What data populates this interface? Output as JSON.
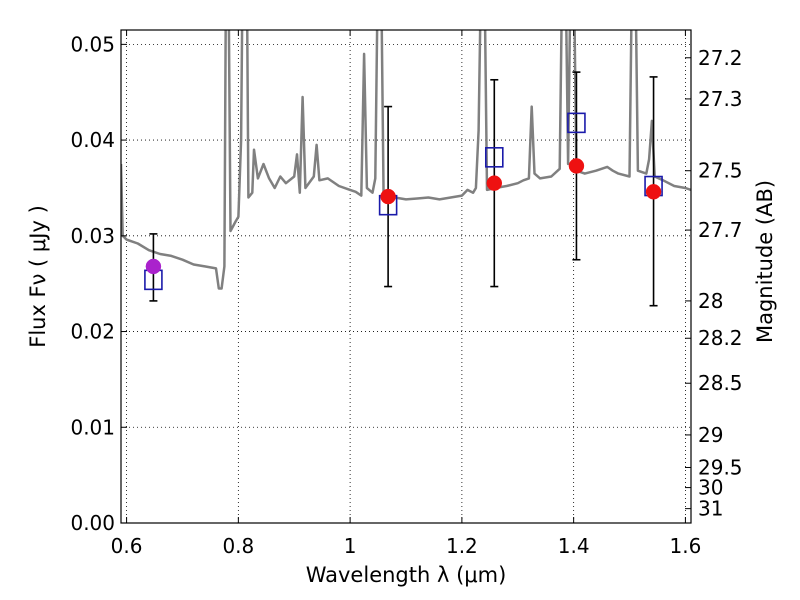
{
  "chart_data": {
    "type": "scatter",
    "xlabel": "Wavelength  λ (μm)",
    "ylabel": "Flux  Fν  ( μJy )",
    "y2label": "Magnitude (AB)",
    "xlim": [
      0.59,
      1.61
    ],
    "ylim": [
      0.0,
      0.0515
    ],
    "x_ticks": [
      0.6,
      0.8,
      1.0,
      1.2,
      1.4,
      1.6
    ],
    "x_tick_labels": [
      "0.6",
      "0.8",
      "1",
      "1.2",
      "1.4",
      "1.6"
    ],
    "y_ticks": [
      0.0,
      0.01,
      0.02,
      0.03,
      0.04,
      0.05
    ],
    "y_tick_labels": [
      "0.00",
      "0.01",
      "0.02",
      "0.03",
      "0.04",
      "0.05"
    ],
    "y2_ticks": [
      {
        "label": "27.2",
        "flux": 0.0486
      },
      {
        "label": "27.3",
        "flux": 0.0443
      },
      {
        "label": "27.5",
        "flux": 0.0368
      },
      {
        "label": "27.7",
        "flux": 0.0306
      },
      {
        "label": "28",
        "flux": 0.0232
      },
      {
        "label": "28.2",
        "flux": 0.0193
      },
      {
        "label": "28.5",
        "flux": 0.0146
      },
      {
        "label": "29",
        "flux": 0.0092
      },
      {
        "label": "29.5",
        "flux": 0.0058
      },
      {
        "label": "30",
        "flux": 0.0037
      },
      {
        "label": "31",
        "flux": 0.0015
      }
    ],
    "grid": true,
    "colors": {
      "model": "#808080",
      "observed": "#ee1111",
      "observed_first": "#aa22cc",
      "model_box": "#1a1aaa",
      "errorbar": "#000000"
    },
    "series": [
      {
        "type": "line",
        "points": [
          [
            0.59,
            0.0375
          ],
          [
            0.593,
            0.03
          ],
          [
            0.6,
            0.0296
          ],
          [
            0.62,
            0.0292
          ],
          [
            0.64,
            0.0285
          ],
          [
            0.66,
            0.0281
          ],
          [
            0.68,
            0.0279
          ],
          [
            0.7,
            0.0275
          ],
          [
            0.72,
            0.027
          ],
          [
            0.74,
            0.0268
          ],
          [
            0.76,
            0.0266
          ],
          [
            0.765,
            0.0245
          ],
          [
            0.77,
            0.0245
          ],
          [
            0.775,
            0.0268
          ],
          [
            0.778,
            0.06
          ],
          [
            0.782,
            0.06
          ],
          [
            0.786,
            0.0305
          ],
          [
            0.795,
            0.0315
          ],
          [
            0.8,
            0.032
          ],
          [
            0.805,
            0.04
          ],
          [
            0.808,
            0.06
          ],
          [
            0.815,
            0.06
          ],
          [
            0.818,
            0.034
          ],
          [
            0.825,
            0.0345
          ],
          [
            0.828,
            0.039
          ],
          [
            0.835,
            0.036
          ],
          [
            0.845,
            0.0375
          ],
          [
            0.855,
            0.036
          ],
          [
            0.865,
            0.035
          ],
          [
            0.875,
            0.0362
          ],
          [
            0.885,
            0.0355
          ],
          [
            0.9,
            0.0362
          ],
          [
            0.905,
            0.0385
          ],
          [
            0.91,
            0.0345
          ],
          [
            0.915,
            0.0445
          ],
          [
            0.92,
            0.035
          ],
          [
            0.935,
            0.0362
          ],
          [
            0.94,
            0.0395
          ],
          [
            0.945,
            0.0358
          ],
          [
            0.96,
            0.036
          ],
          [
            0.98,
            0.0352
          ],
          [
            1.0,
            0.0348
          ],
          [
            1.01,
            0.0346
          ],
          [
            1.02,
            0.0342
          ],
          [
            1.025,
            0.049
          ],
          [
            1.03,
            0.035
          ],
          [
            1.04,
            0.0345
          ],
          [
            1.045,
            0.036
          ],
          [
            1.05,
            0.06
          ],
          [
            1.055,
            0.06
          ],
          [
            1.06,
            0.034
          ],
          [
            1.08,
            0.034
          ],
          [
            1.1,
            0.0338
          ],
          [
            1.12,
            0.0339
          ],
          [
            1.14,
            0.034
          ],
          [
            1.16,
            0.0338
          ],
          [
            1.18,
            0.034
          ],
          [
            1.2,
            0.0342
          ],
          [
            1.21,
            0.0348
          ],
          [
            1.22,
            0.0345
          ],
          [
            1.225,
            0.035
          ],
          [
            1.23,
            0.041
          ],
          [
            1.235,
            0.06
          ],
          [
            1.24,
            0.06
          ],
          [
            1.245,
            0.0348
          ],
          [
            1.26,
            0.035
          ],
          [
            1.28,
            0.0352
          ],
          [
            1.3,
            0.0355
          ],
          [
            1.31,
            0.0358
          ],
          [
            1.32,
            0.036
          ],
          [
            1.325,
            0.0435
          ],
          [
            1.33,
            0.0365
          ],
          [
            1.34,
            0.036
          ],
          [
            1.36,
            0.0362
          ],
          [
            1.375,
            0.037
          ],
          [
            1.38,
            0.06
          ],
          [
            1.385,
            0.06
          ],
          [
            1.39,
            0.0375
          ],
          [
            1.395,
            0.06
          ],
          [
            1.4,
            0.06
          ],
          [
            1.405,
            0.0368
          ],
          [
            1.42,
            0.0365
          ],
          [
            1.44,
            0.0368
          ],
          [
            1.46,
            0.0372
          ],
          [
            1.47,
            0.0368
          ],
          [
            1.48,
            0.0365
          ],
          [
            1.5,
            0.0362
          ],
          [
            1.505,
            0.06
          ],
          [
            1.51,
            0.06
          ],
          [
            1.515,
            0.0368
          ],
          [
            1.53,
            0.0365
          ],
          [
            1.535,
            0.038
          ],
          [
            1.54,
            0.042
          ],
          [
            1.545,
            0.0362
          ],
          [
            1.56,
            0.0358
          ],
          [
            1.58,
            0.0352
          ],
          [
            1.6,
            0.035
          ],
          [
            1.61,
            0.0348
          ]
        ]
      },
      {
        "type": "scatter",
        "points": [
          {
            "x": 0.648,
            "y": 0.0268,
            "yerr_low": 0.0232,
            "yerr_high": 0.0302
          },
          {
            "x": 1.068,
            "y": 0.0341,
            "yerr_low": 0.0247,
            "yerr_high": 0.0435
          },
          {
            "x": 1.258,
            "y": 0.0355,
            "yerr_low": 0.0247,
            "yerr_high": 0.0463
          },
          {
            "x": 1.405,
            "y": 0.0373,
            "yerr_low": 0.0275,
            "yerr_high": 0.0471
          },
          {
            "x": 1.543,
            "y": 0.0346,
            "yerr_low": 0.0227,
            "yerr_high": 0.0466
          }
        ]
      },
      {
        "type": "scatter",
        "points": [
          {
            "x": 0.648,
            "y": 0.0254
          },
          {
            "x": 1.068,
            "y": 0.0332
          },
          {
            "x": 1.258,
            "y": 0.0382
          },
          {
            "x": 1.405,
            "y": 0.0418
          },
          {
            "x": 1.543,
            "y": 0.0352
          }
        ]
      }
    ]
  }
}
